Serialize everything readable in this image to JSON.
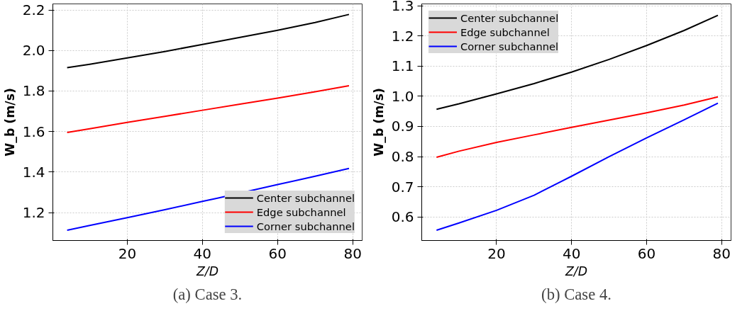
{
  "chart_data": [
    {
      "type": "line",
      "xlabel": "Z/D",
      "ylabel": "W_b (m/s)",
      "xlim": [
        0.2,
        82.5
      ],
      "ylim": [
        1.062,
        2.23
      ],
      "xticks": [
        20,
        40,
        60,
        80
      ],
      "yticks": [
        1.2,
        1.4,
        1.6,
        1.8,
        {
          "value": 2,
          "label": "2.0"
        },
        2.2
      ],
      "grid": true,
      "legend": "bottom right",
      "line_style": "solid",
      "annotations": [
        "(a) Case 3."
      ],
      "x": [
        4,
        10,
        20,
        30,
        40,
        50,
        60,
        70,
        79
      ],
      "series": [
        {
          "name": "Center subchannel",
          "color": "#000000",
          "values": [
            1.915,
            1.932,
            1.963,
            1.995,
            2.03,
            2.065,
            2.1,
            2.138,
            2.178
          ]
        },
        {
          "name": "Edge subchannel",
          "color": "#ff0000",
          "values": [
            1.595,
            1.614,
            1.645,
            1.675,
            1.705,
            1.735,
            1.765,
            1.796,
            1.826
          ]
        },
        {
          "name": "Corner subchannel",
          "color": "#0000ff",
          "x": [
            4,
            10,
            20,
            30,
            40,
            44,
            60,
            70,
            79
          ],
          "values": [
            1.113,
            1.136,
            1.175,
            1.214,
            1.255,
            1.271,
            1.338,
            1.379,
            1.418
          ]
        }
      ]
    },
    {
      "type": "line",
      "xlabel": "Z/D",
      "ylabel": "W_b (m/s)",
      "xlim": [
        0.06,
        82.5
      ],
      "ylim": [
        0.522,
        1.306
      ],
      "xticks": [
        20,
        40,
        60,
        80
      ],
      "yticks": [
        0.6,
        0.7,
        0.8,
        0.9,
        {
          "value": 1,
          "label": "1.0"
        },
        1.1,
        1.2,
        1.3
      ],
      "grid": true,
      "legend": "top left",
      "line_style": "solid",
      "annotations": [
        "(b) Case 4."
      ],
      "x": [
        4,
        10,
        20,
        30,
        40,
        50,
        60,
        70,
        79
      ],
      "series": [
        {
          "name": "Center subchannel",
          "color": "#000000",
          "values": [
            0.957,
            0.975,
            1.008,
            1.042,
            1.08,
            1.122,
            1.168,
            1.218,
            1.268
          ]
        },
        {
          "name": "Edge subchannel",
          "color": "#ff0000",
          "values": [
            0.798,
            0.818,
            0.847,
            0.872,
            0.897,
            0.921,
            0.945,
            0.971,
            0.998
          ]
        },
        {
          "name": "Corner subchannel",
          "color": "#0000ff",
          "values": [
            0.556,
            0.58,
            0.622,
            0.672,
            0.735,
            0.8,
            0.862,
            0.922,
            0.977
          ]
        }
      ]
    }
  ]
}
